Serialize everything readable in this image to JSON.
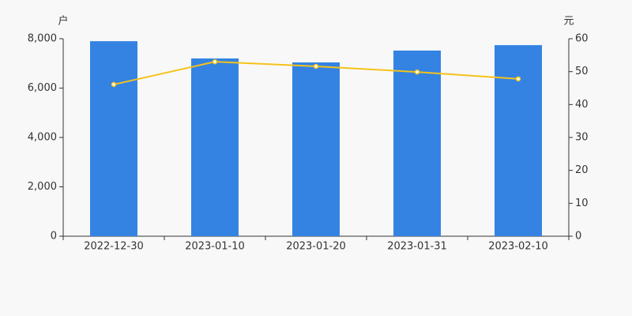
{
  "chart_data": {
    "type": "bar-line",
    "y_unit": "户",
    "y2_unit": "元",
    "categories": [
      "2022-12-30",
      "2023-01-10",
      "2023-01-20",
      "2023-01-31",
      "2023-02-10"
    ],
    "series": [
      {
        "type": "bar",
        "color": "#3483e3",
        "values": [
          7900,
          7200,
          7040,
          7520,
          7740
        ]
      },
      {
        "type": "line",
        "axis": "y2",
        "color": "#f5c21b",
        "values": [
          46.1,
          53.0,
          51.6,
          49.9,
          47.8
        ]
      }
    ],
    "ylim": [
      0,
      8000
    ],
    "yticks": [
      0,
      {
        "value": 2000,
        "label": "2,000"
      },
      {
        "value": 4000,
        "label": "4,000"
      },
      {
        "value": 6000,
        "label": "6,000"
      },
      {
        "value": 8000,
        "label": "8,000"
      }
    ],
    "y2lim": [
      0,
      60
    ],
    "y2ticks": [
      0,
      10,
      20,
      30,
      40,
      50,
      60
    ]
  }
}
